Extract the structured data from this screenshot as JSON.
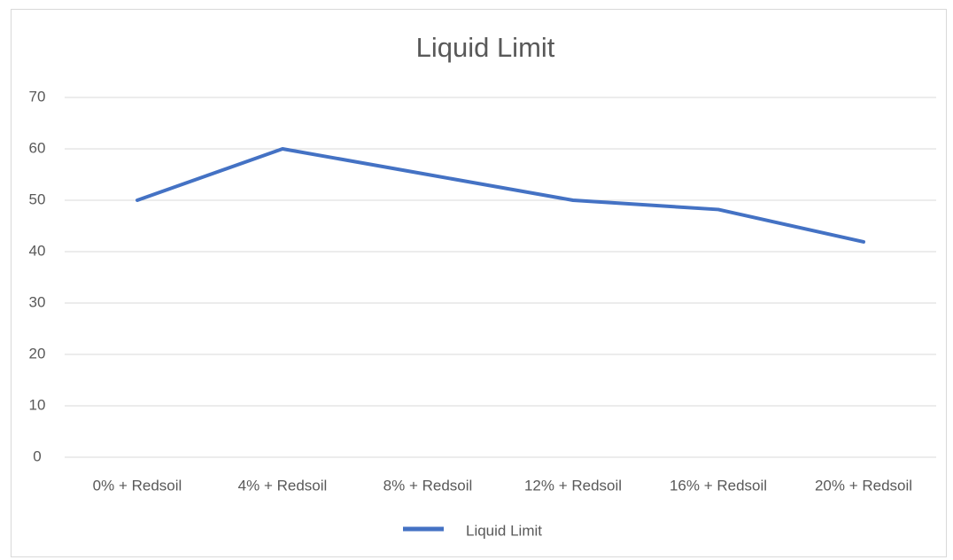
{
  "chart_data": {
    "type": "line",
    "title": "Liquid Limit",
    "categories": [
      "0% + Redsoil",
      "4% + Redsoil",
      "8% + Redsoil",
      "12% + Redsoil",
      "16% + Redsoil",
      "20% + Redsoil"
    ],
    "series": [
      {
        "name": "Liquid Limit",
        "color": "#4472c4",
        "values": [
          50,
          60,
          55,
          50,
          48.2,
          41.9
        ]
      }
    ],
    "ylim": [
      0,
      70
    ],
    "yticks": [
      0,
      10,
      20,
      30,
      40,
      50,
      60,
      70
    ],
    "grid": true,
    "legend": "bottom"
  }
}
